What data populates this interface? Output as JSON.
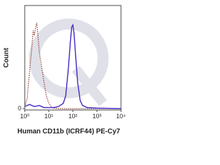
{
  "chart_data": {
    "type": "line",
    "x_label": "Human CD11b (ICRF44) PE-Cy7",
    "y_label": "Count",
    "x_scale": "log",
    "xlim": [
      1,
      10000
    ],
    "ylim": [
      0,
      100
    ],
    "xticks": [
      {
        "value": 1,
        "label": "10⁰"
      },
      {
        "value": 10,
        "label": "10¹"
      },
      {
        "value": 100,
        "label": "10²"
      },
      {
        "value": 1000,
        "label": "10³"
      },
      {
        "value": 10000,
        "label": "10⁴"
      }
    ],
    "yticks": [
      0
    ],
    "series": [
      {
        "color": "#8b3a2a",
        "dash": "dotted",
        "x": [
          1,
          1.26,
          1.58,
          2.0,
          2.24,
          2.51,
          2.82,
          3.16,
          3.55,
          3.98,
          5.01,
          6.31,
          7.94,
          10,
          12.6,
          15.8,
          25.1,
          10000
        ],
        "values": [
          2,
          10,
          35,
          60,
          75,
          70,
          78,
          82,
          70,
          55,
          40,
          25,
          12,
          5,
          2,
          0.5,
          0,
          0
        ]
      },
      {
        "color": "#4b2fc4",
        "dash": "solid",
        "x": [
          1,
          1.58,
          2.51,
          3.98,
          6.31,
          10,
          15.8,
          25.1,
          39.8,
          50.1,
          63.1,
          79.4,
          89.1,
          100,
          112,
          126,
          158,
          200,
          251,
          398,
          1000,
          10000
        ],
        "values": [
          2,
          4,
          2,
          3,
          1,
          1,
          1,
          2,
          5,
          12,
          35,
          65,
          78,
          80,
          72,
          55,
          25,
          8,
          3,
          1,
          0.5,
          0
        ]
      }
    ]
  }
}
